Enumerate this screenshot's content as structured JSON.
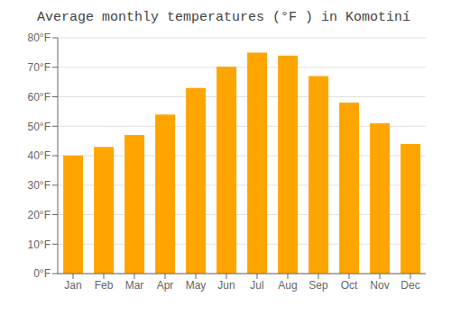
{
  "chart_data": {
    "type": "bar",
    "title": "Average monthly temperatures (°F ) in Komotiní",
    "categories": [
      "Jan",
      "Feb",
      "Mar",
      "Apr",
      "May",
      "Jun",
      "Jul",
      "Aug",
      "Sep",
      "Oct",
      "Nov",
      "Dec"
    ],
    "values": [
      40.1,
      43.0,
      47.0,
      54.0,
      63.0,
      70.2,
      75.0,
      74.0,
      67.0,
      58.0,
      51.0,
      44.0
    ],
    "color": "#FFA500",
    "ylim": [
      0,
      80
    ],
    "yticks": [
      {
        "value": 0,
        "label": "0°F"
      },
      {
        "value": 10,
        "label": "10°F"
      },
      {
        "value": 20,
        "label": "20°F"
      },
      {
        "value": 30,
        "label": "30°F"
      },
      {
        "value": 40,
        "label": "40°F"
      },
      {
        "value": 50,
        "label": "50°F"
      },
      {
        "value": 60,
        "label": "60°F"
      },
      {
        "value": 70,
        "label": "70°F"
      },
      {
        "value": 80,
        "label": "80°F"
      }
    ],
    "grid": true
  }
}
